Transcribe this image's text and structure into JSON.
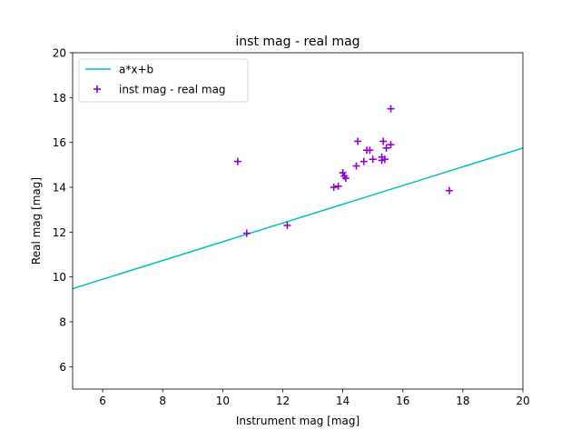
{
  "chart_data": {
    "type": "scatter",
    "title": "inst mag - real mag",
    "xlabel": "Instrument mag [mag]",
    "ylabel": "Real mag [mag]",
    "xlim": [
      5,
      20
    ],
    "ylim": [
      5,
      20
    ],
    "xticks": [
      6,
      8,
      10,
      12,
      14,
      16,
      18,
      20
    ],
    "yticks": [
      6,
      8,
      10,
      12,
      14,
      16,
      18,
      20
    ],
    "grid": false,
    "legend_position": "top-left",
    "series": [
      {
        "name": "a*x+b",
        "kind": "line",
        "color": "#00bfbf",
        "x": [
          5,
          20
        ],
        "y": [
          9.48,
          15.75
        ]
      },
      {
        "name": "inst mag - real mag",
        "kind": "scatter",
        "marker": "plus",
        "color": "#9400d3",
        "x": [
          10.5,
          10.8,
          12.15,
          13.7,
          13.85,
          14.0,
          14.05,
          14.1,
          14.45,
          14.5,
          14.7,
          14.8,
          14.9,
          15.0,
          15.3,
          15.3,
          15.35,
          15.4,
          15.45,
          15.6,
          15.6,
          17.55
        ],
        "y": [
          15.15,
          11.95,
          12.3,
          14.0,
          14.05,
          14.65,
          14.5,
          14.4,
          14.95,
          16.05,
          15.15,
          15.65,
          15.65,
          15.25,
          15.35,
          15.2,
          16.05,
          15.25,
          15.75,
          15.9,
          17.5,
          13.85
        ]
      }
    ]
  }
}
